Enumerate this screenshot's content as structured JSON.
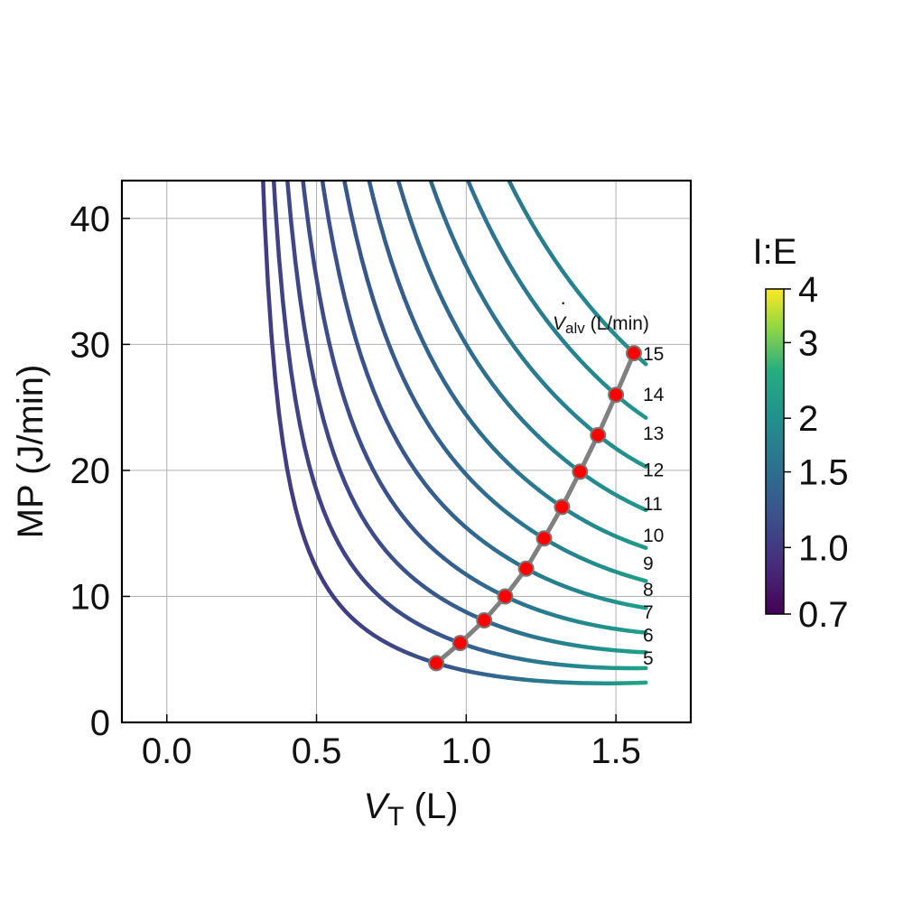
{
  "chart_data": {
    "type": "line",
    "xlabel_main": "V",
    "xlabel_sub": "T",
    "xlabel_unit": " (L)",
    "ylabel": "MP (J/min)",
    "xlim": [
      -0.15,
      1.75
    ],
    "ylim": [
      0,
      43
    ],
    "x_ticks": [
      0.0,
      0.5,
      1.0,
      1.5
    ],
    "x_tick_labels": [
      "0.0",
      "0.5",
      "1.0",
      "1.5"
    ],
    "y_ticks": [
      0,
      10,
      20,
      30,
      40
    ],
    "y_tick_labels": [
      "0",
      "10",
      "20",
      "30",
      "40"
    ],
    "grid": true,
    "curve_legend_title_main": "V",
    "curve_legend_title_sub": "alv",
    "curve_legend_title_unit": " (L/min)",
    "series": [
      {
        "name": "5",
        "min_point": [
          0.9,
          4.7
        ]
      },
      {
        "name": "6",
        "min_point": [
          0.98,
          6.3
        ]
      },
      {
        "name": "7",
        "min_point": [
          1.06,
          8.1
        ]
      },
      {
        "name": "8",
        "min_point": [
          1.13,
          10.0
        ]
      },
      {
        "name": "9",
        "min_point": [
          1.2,
          12.2
        ]
      },
      {
        "name": "10",
        "min_point": [
          1.26,
          14.6
        ]
      },
      {
        "name": "11",
        "min_point": [
          1.32,
          17.1
        ]
      },
      {
        "name": "12",
        "min_point": [
          1.38,
          19.9
        ]
      },
      {
        "name": "13",
        "min_point": [
          1.44,
          22.8
        ]
      },
      {
        "name": "14",
        "min_point": [
          1.5,
          26.0
        ]
      },
      {
        "name": "15",
        "min_point": [
          1.56,
          29.3
        ]
      }
    ],
    "x_end": 1.6,
    "end_values": [
      5.6,
      7.2,
      8.8,
      10.6,
      12.7,
      14.9,
      17.4,
      20.1,
      23.0,
      26.1,
      29.3
    ],
    "min_line_color": "#808080",
    "min_marker_color": "#ff0000",
    "colorbar": {
      "title": "I:E",
      "ticks": [
        0.7,
        1.0,
        1.5,
        2,
        3,
        4
      ],
      "tick_labels": [
        "0.7",
        "1.0",
        "1.5",
        "2",
        "3",
        "4"
      ],
      "scale": "log",
      "colormap": "viridis"
    }
  }
}
